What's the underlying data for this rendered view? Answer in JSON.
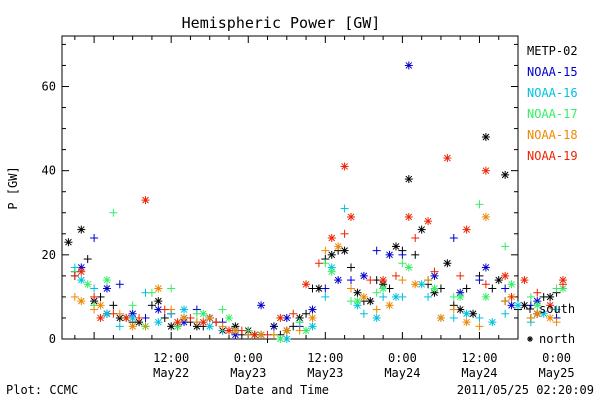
{
  "chart_data": {
    "type": "scatter",
    "title": "Hemispheric Power [GW]",
    "ylabel": "P [GW]",
    "xlabel": "Date and Time",
    "ylim": [
      0,
      72
    ],
    "xlim": [
      -17,
      54
    ],
    "x_unit": "hours",
    "yticks": [
      0,
      20,
      40,
      60
    ],
    "xticks": [
      {
        "x": 0,
        "top": "12:00",
        "bottom": "May22"
      },
      {
        "x": 12,
        "top": "0:00",
        "bottom": "May23"
      },
      {
        "x": 24,
        "top": "12:00",
        "bottom": "May23"
      },
      {
        "x": 36,
        "top": "0:00",
        "bottom": "May24"
      },
      {
        "x": 48,
        "top": "12:00",
        "bottom": "May24"
      },
      {
        "x": 60,
        "top": "0:00",
        "bottom": "May25"
      }
    ],
    "footer_left": "Plot: CCMC",
    "footer_right": "2011/05/25 02:20:09",
    "marker_legend": [
      {
        "symbol": "+",
        "label": "south"
      },
      {
        "symbol": "*",
        "label": "north"
      }
    ],
    "series": [
      {
        "name": "METP-02",
        "color": "#000000",
        "south": [
          [
            -15,
            15
          ],
          [
            -13,
            19
          ],
          [
            -11,
            10
          ],
          [
            -9,
            8
          ],
          [
            -6,
            4
          ],
          [
            -3,
            8
          ],
          [
            -1,
            5
          ],
          [
            1,
            3
          ],
          [
            3,
            4
          ],
          [
            5,
            3
          ],
          [
            7,
            4
          ],
          [
            9,
            2
          ],
          [
            11,
            1
          ],
          [
            13,
            1
          ],
          [
            15,
            0
          ],
          [
            17,
            1
          ],
          [
            19,
            3
          ],
          [
            21,
            6
          ],
          [
            22,
            12
          ],
          [
            24,
            19
          ],
          [
            26,
            21
          ],
          [
            28,
            17
          ],
          [
            30,
            9
          ],
          [
            32,
            14
          ],
          [
            34,
            12
          ],
          [
            36,
            21
          ],
          [
            38,
            20
          ],
          [
            40,
            13
          ],
          [
            42,
            12
          ],
          [
            44,
            8
          ],
          [
            46,
            12
          ],
          [
            48,
            15
          ],
          [
            50,
            12
          ],
          [
            52,
            9
          ],
          [
            54,
            7
          ],
          [
            56,
            5
          ],
          [
            58,
            10
          ],
          [
            60,
            11
          ]
        ],
        "north": [
          [
            -16,
            23
          ],
          [
            -14,
            26
          ],
          [
            -12,
            9
          ],
          [
            -10,
            6
          ],
          [
            -8,
            5
          ],
          [
            -5,
            4
          ],
          [
            -2,
            9
          ],
          [
            0,
            3
          ],
          [
            2,
            5
          ],
          [
            4,
            3
          ],
          [
            6,
            5
          ],
          [
            8,
            2
          ],
          [
            10,
            3
          ],
          [
            12,
            2
          ],
          [
            14,
            1
          ],
          [
            16,
            3
          ],
          [
            18,
            2
          ],
          [
            20,
            5
          ],
          [
            23,
            12
          ],
          [
            25,
            20
          ],
          [
            27,
            21
          ],
          [
            29,
            11
          ],
          [
            31,
            9
          ],
          [
            33,
            13
          ],
          [
            35,
            22
          ],
          [
            37,
            38
          ],
          [
            39,
            26
          ],
          [
            41,
            11
          ],
          [
            43,
            18
          ],
          [
            45,
            7
          ],
          [
            47,
            6
          ],
          [
            49,
            48
          ],
          [
            51,
            14
          ],
          [
            52,
            39
          ],
          [
            55,
            8
          ],
          [
            57,
            6
          ],
          [
            59,
            10
          ]
        ]
      },
      {
        "name": "NOAA-15",
        "color": "#0000cc",
        "south": [
          [
            -15,
            16
          ],
          [
            -12,
            24
          ],
          [
            -8,
            13
          ],
          [
            -4,
            5
          ],
          [
            0,
            6
          ],
          [
            4,
            7
          ],
          [
            8,
            4
          ],
          [
            12,
            1
          ],
          [
            16,
            3
          ],
          [
            20,
            3
          ],
          [
            24,
            12
          ],
          [
            28,
            14
          ],
          [
            32,
            21
          ],
          [
            36,
            20
          ],
          [
            40,
            14
          ],
          [
            44,
            24
          ],
          [
            48,
            14
          ],
          [
            52,
            12
          ],
          [
            56,
            8
          ],
          [
            60,
            5
          ]
        ],
        "north": [
          [
            -14,
            17
          ],
          [
            -10,
            12
          ],
          [
            -6,
            6
          ],
          [
            -2,
            7
          ],
          [
            2,
            4
          ],
          [
            6,
            5
          ],
          [
            10,
            1
          ],
          [
            14,
            8
          ],
          [
            18,
            5
          ],
          [
            22,
            7
          ],
          [
            26,
            14
          ],
          [
            30,
            15
          ],
          [
            34,
            20
          ],
          [
            37,
            65
          ],
          [
            41,
            15
          ],
          [
            45,
            11
          ],
          [
            49,
            17
          ],
          [
            53,
            8
          ],
          [
            57,
            9
          ]
        ]
      },
      {
        "name": "NOAA-16",
        "color": "#00c0e0",
        "south": [
          [
            -15,
            17
          ],
          [
            -12,
            12
          ],
          [
            -8,
            3
          ],
          [
            -4,
            11
          ],
          [
            0,
            6
          ],
          [
            4,
            4
          ],
          [
            8,
            2
          ],
          [
            12,
            1
          ],
          [
            16,
            1
          ],
          [
            20,
            4
          ],
          [
            24,
            10
          ],
          [
            27,
            31
          ],
          [
            30,
            6
          ],
          [
            33,
            10
          ],
          [
            36,
            10
          ],
          [
            40,
            10
          ],
          [
            44,
            5
          ],
          [
            48,
            5
          ],
          [
            52,
            6
          ],
          [
            56,
            4
          ],
          [
            60,
            7
          ]
        ],
        "north": [
          [
            -14,
            14
          ],
          [
            -10,
            6
          ],
          [
            -6,
            5
          ],
          [
            -2,
            4
          ],
          [
            2,
            7
          ],
          [
            6,
            3
          ],
          [
            10,
            2
          ],
          [
            14,
            1
          ],
          [
            18,
            0
          ],
          [
            22,
            3
          ],
          [
            25,
            17
          ],
          [
            29,
            8
          ],
          [
            32,
            5
          ],
          [
            35,
            10
          ],
          [
            39,
            13
          ],
          [
            42,
            5
          ],
          [
            46,
            6
          ],
          [
            50,
            4
          ],
          [
            54,
            8
          ],
          [
            58,
            6
          ]
        ]
      },
      {
        "name": "NOAA-17",
        "color": "#33ee66",
        "south": [
          [
            -15,
            16
          ],
          [
            -12,
            8
          ],
          [
            -9,
            30
          ],
          [
            -6,
            8
          ],
          [
            -3,
            11
          ],
          [
            0,
            12
          ],
          [
            4,
            6
          ],
          [
            8,
            7
          ],
          [
            12,
            2
          ],
          [
            16,
            1
          ],
          [
            20,
            4
          ],
          [
            24,
            18
          ],
          [
            28,
            9
          ],
          [
            32,
            11
          ],
          [
            36,
            18
          ],
          [
            40,
            14
          ],
          [
            44,
            10
          ],
          [
            48,
            32
          ],
          [
            52,
            22
          ],
          [
            56,
            10
          ],
          [
            60,
            12
          ]
        ],
        "north": [
          [
            -13,
            13
          ],
          [
            -10,
            14
          ],
          [
            -7,
            5
          ],
          [
            -4,
            3
          ],
          [
            1,
            3
          ],
          [
            5,
            6
          ],
          [
            9,
            5
          ],
          [
            13,
            1
          ],
          [
            17,
            0
          ],
          [
            21,
            2
          ],
          [
            25,
            16
          ],
          [
            29,
            9
          ],
          [
            33,
            12
          ],
          [
            37,
            17
          ],
          [
            41,
            12
          ],
          [
            45,
            10
          ],
          [
            49,
            10
          ],
          [
            53,
            13
          ],
          [
            57,
            8
          ],
          [
            61,
            12
          ]
        ]
      },
      {
        "name": "NOAA-18",
        "color": "#ee8800",
        "south": [
          [
            -15,
            10
          ],
          [
            -12,
            7
          ],
          [
            -8,
            6
          ],
          [
            -4,
            3
          ],
          [
            0,
            7
          ],
          [
            4,
            4
          ],
          [
            8,
            3
          ],
          [
            12,
            1
          ],
          [
            16,
            1
          ],
          [
            20,
            2
          ],
          [
            24,
            21
          ],
          [
            28,
            12
          ],
          [
            32,
            7
          ],
          [
            36,
            14
          ],
          [
            40,
            14
          ],
          [
            44,
            7
          ],
          [
            48,
            3
          ],
          [
            52,
            9
          ],
          [
            56,
            5
          ],
          [
            60,
            4
          ]
        ],
        "north": [
          [
            -14,
            9
          ],
          [
            -11,
            8
          ],
          [
            -6,
            3
          ],
          [
            -2,
            12
          ],
          [
            2,
            5
          ],
          [
            6,
            5
          ],
          [
            10,
            2
          ],
          [
            14,
            1
          ],
          [
            18,
            2
          ],
          [
            22,
            5
          ],
          [
            26,
            22
          ],
          [
            30,
            10
          ],
          [
            34,
            8
          ],
          [
            38,
            13
          ],
          [
            42,
            5
          ],
          [
            46,
            4
          ],
          [
            49,
            29
          ],
          [
            53,
            10
          ],
          [
            57,
            6
          ],
          [
            59,
            5
          ]
        ]
      },
      {
        "name": "NOAA-19",
        "color": "#ee2200",
        "south": [
          [
            -15,
            15
          ],
          [
            -12,
            10
          ],
          [
            -9,
            6
          ],
          [
            -5,
            5
          ],
          [
            -1,
            7
          ],
          [
            3,
            5
          ],
          [
            7,
            4
          ],
          [
            11,
            2
          ],
          [
            15,
            1
          ],
          [
            19,
            6
          ],
          [
            23,
            18
          ],
          [
            27,
            25
          ],
          [
            31,
            14
          ],
          [
            35,
            15
          ],
          [
            38,
            24
          ],
          [
            41,
            16
          ],
          [
            45,
            15
          ],
          [
            49,
            13
          ],
          [
            53,
            10
          ],
          [
            57,
            11
          ],
          [
            61,
            13
          ]
        ],
        "north": [
          [
            -14,
            16
          ],
          [
            -11,
            5
          ],
          [
            -7,
            5
          ],
          [
            -4,
            33
          ],
          [
            1,
            4
          ],
          [
            5,
            4
          ],
          [
            9,
            2
          ],
          [
            13,
            1
          ],
          [
            17,
            5
          ],
          [
            21,
            13
          ],
          [
            25,
            24
          ],
          [
            27,
            41
          ],
          [
            28,
            29
          ],
          [
            33,
            14
          ],
          [
            37,
            29
          ],
          [
            40,
            28
          ],
          [
            43,
            43
          ],
          [
            46,
            26
          ],
          [
            49,
            40
          ],
          [
            52,
            15
          ],
          [
            55,
            14
          ],
          [
            59,
            8
          ],
          [
            61,
            14
          ]
        ]
      }
    ]
  }
}
